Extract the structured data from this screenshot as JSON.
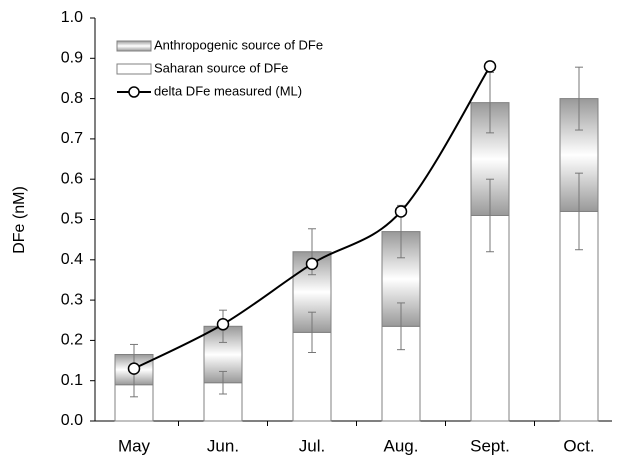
{
  "chart_data": {
    "type": "bar",
    "stacked": true,
    "y_label": "DFe (nM)",
    "categories": [
      "May",
      "Jun.",
      "Jul.",
      "Aug.",
      "Sept.",
      "Oct."
    ],
    "series": [
      {
        "name": "Anthropogenic source of DFe",
        "color": "#999999",
        "values": [
          0.075,
          0.14,
          0.2,
          0.235,
          0.28,
          0.28
        ],
        "errors": [
          0.025,
          0.04,
          0.057,
          0.065,
          0.075,
          0.078
        ]
      },
      {
        "name": "Saharan source of DFe",
        "color": "#ffffff",
        "values": [
          0.09,
          0.095,
          0.22,
          0.235,
          0.51,
          0.52
        ],
        "errors": [
          0.03,
          0.028,
          0.05,
          0.058,
          0.09,
          0.095
        ]
      },
      {
        "name": "delta DFe measured (ML)",
        "type": "line",
        "color": "#000000",
        "values": [
          0.13,
          0.24,
          0.39,
          0.52,
          0.88,
          null
        ]
      }
    ],
    "ylim": [
      0,
      1
    ],
    "yticks": [
      {
        "value": 0,
        "label": "0.0"
      },
      0.1,
      0.2,
      0.3,
      0.4,
      0.5,
      0.6,
      0.7,
      0.8,
      0.9,
      {
        "value": 1,
        "label": "1.0"
      }
    ],
    "legend": "upper left"
  }
}
